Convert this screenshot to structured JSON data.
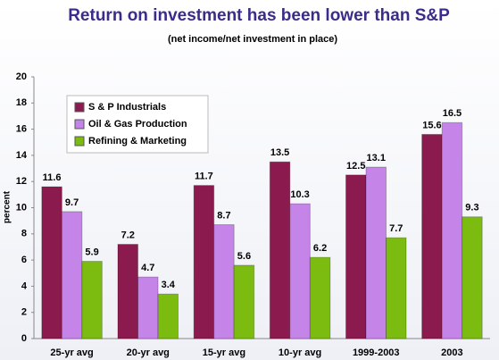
{
  "chart_data": {
    "type": "bar",
    "title": "Return on investment has been lower than S&P",
    "subtitle": "(net income/net investment in place)",
    "y_label": "percent",
    "categories": [
      "25-yr avg",
      "20-yr avg",
      "15-yr avg",
      "10-yr avg",
      "1999-2003",
      "2003"
    ],
    "series": [
      {
        "name": "S & P Industrials",
        "color": "#8b1a4e",
        "values": [
          11.6,
          7.2,
          11.7,
          13.5,
          12.5,
          15.6
        ]
      },
      {
        "name": "Oil & Gas Production",
        "color": "#c585e8",
        "values": [
          9.7,
          4.7,
          8.7,
          10.3,
          13.1,
          16.5
        ]
      },
      {
        "name": "Refining & Marketing",
        "color": "#7cbc10",
        "values": [
          5.9,
          3.4,
          5.6,
          6.2,
          7.7,
          9.3
        ]
      }
    ],
    "ylim": [
      0,
      20
    ],
    "yticks": [
      0,
      2,
      4,
      6,
      8,
      10,
      12,
      14,
      16,
      18,
      20
    ],
    "legend": "top-left"
  }
}
